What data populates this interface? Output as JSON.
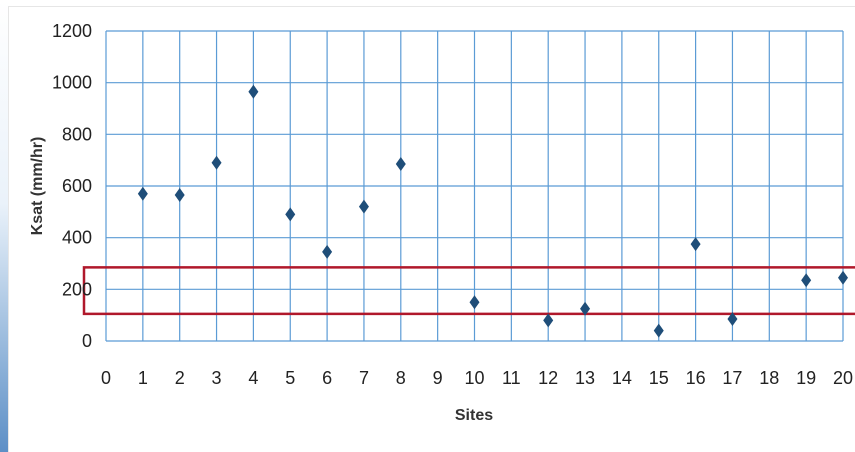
{
  "chart_data": {
    "type": "scatter",
    "xlabel": "Sites",
    "ylabel": "Ksat (mm/hr)",
    "xlim": [
      0,
      20
    ],
    "ylim": [
      0,
      1200
    ],
    "xticks": [
      "0",
      "1",
      "2",
      "3",
      "4",
      "5",
      "6",
      "7",
      "8",
      "9",
      "10",
      "11",
      "12",
      "13",
      "14",
      "15",
      "16",
      "17",
      "18",
      "19",
      "20"
    ],
    "yticks": [
      "0",
      "200",
      "400",
      "600",
      "800",
      "1000",
      "1200"
    ],
    "grid": true,
    "marker": "diamond",
    "marker_color": "#1f4e79",
    "grid_color": "#5b9bd5",
    "highlight_color": "#b0182b",
    "points": [
      {
        "x": 1,
        "y": 570
      },
      {
        "x": 2,
        "y": 565
      },
      {
        "x": 3,
        "y": 690
      },
      {
        "x": 4,
        "y": 965
      },
      {
        "x": 5,
        "y": 490
      },
      {
        "x": 6,
        "y": 345
      },
      {
        "x": 7,
        "y": 520
      },
      {
        "x": 8,
        "y": 685
      },
      {
        "x": 10,
        "y": 150
      },
      {
        "x": 12,
        "y": 80
      },
      {
        "x": 13,
        "y": 125
      },
      {
        "x": 15,
        "y": 40
      },
      {
        "x": 16,
        "y": 375
      },
      {
        "x": 17,
        "y": 85
      },
      {
        "x": 19,
        "y": 235
      },
      {
        "x": 20,
        "y": 245
      }
    ],
    "highlight_band": {
      "y_min": 105,
      "y_max": 285
    }
  }
}
